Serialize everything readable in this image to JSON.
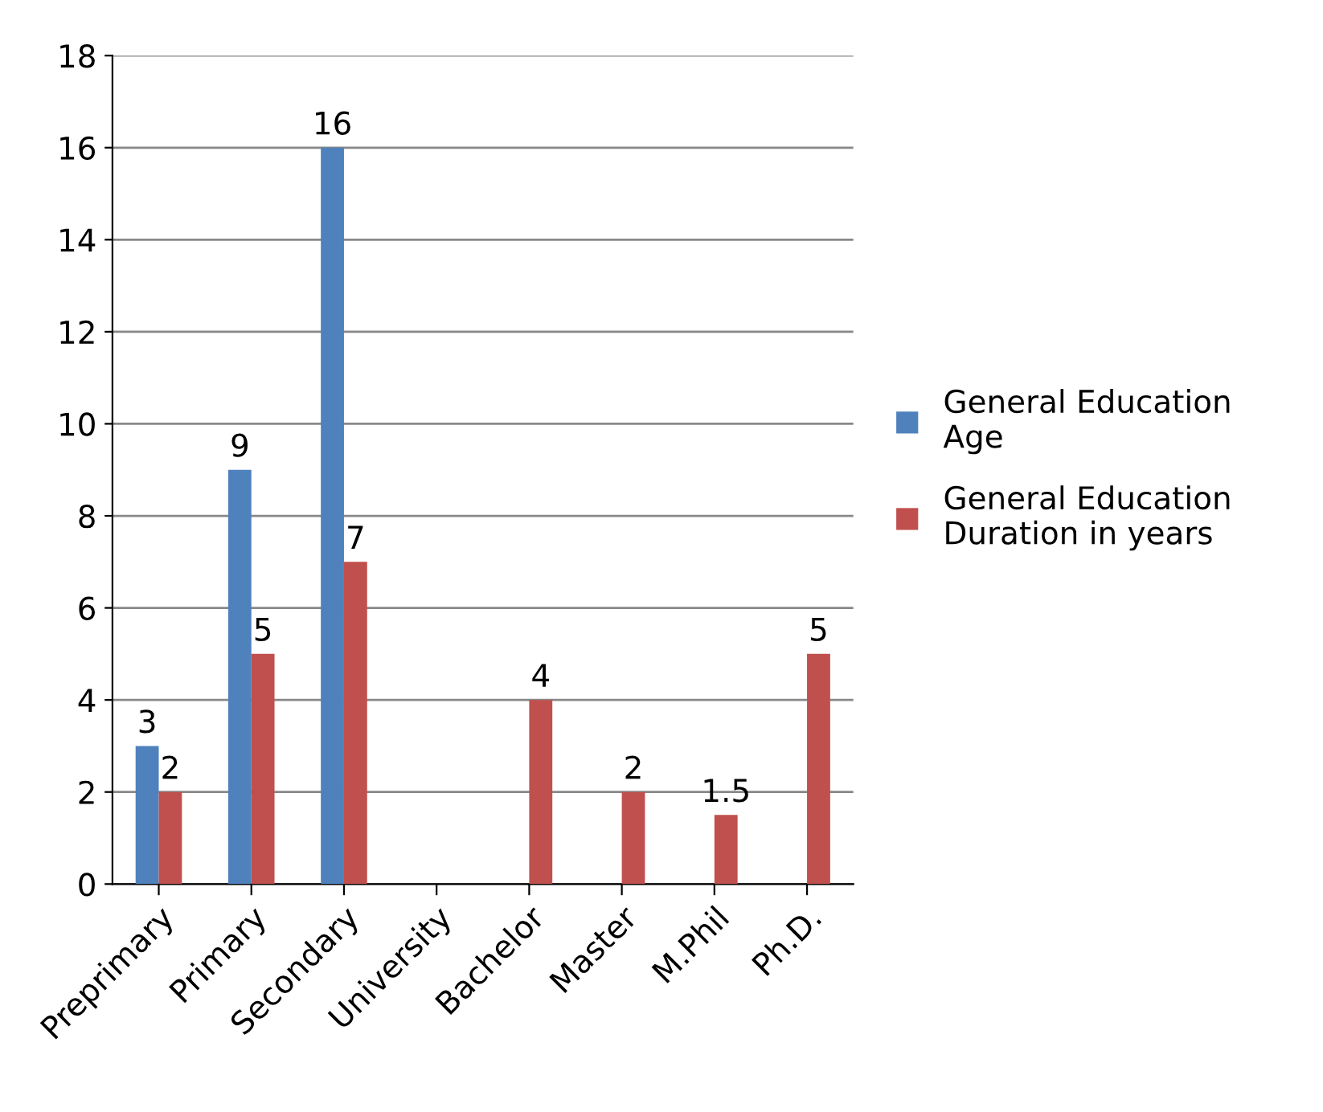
{
  "chart_data": {
    "type": "bar",
    "categories": [
      "Preprimary",
      "Primary",
      "Secondary",
      "University",
      "Bachelor",
      "Master",
      "M.Phil",
      "Ph.D."
    ],
    "series": [
      {
        "name": "General Education Age",
        "color": "#4f81bd",
        "values": [
          3,
          9,
          16,
          null,
          null,
          null,
          null,
          null
        ],
        "value_labels": [
          "3",
          "9",
          "16",
          null,
          null,
          null,
          null,
          null
        ]
      },
      {
        "name": "General Education Duration in years",
        "color": "#c0504d",
        "values": [
          2,
          5,
          7,
          null,
          4,
          2,
          1.5,
          5
        ],
        "value_labels": [
          "2",
          "5",
          "7",
          null,
          "4",
          "2",
          "1.5",
          "5"
        ]
      }
    ],
    "ylim": [
      0,
      18
    ],
    "yticks": [
      0,
      2,
      4,
      6,
      8,
      10,
      12,
      14,
      16,
      18
    ],
    "grid": "y",
    "legend": "right"
  }
}
